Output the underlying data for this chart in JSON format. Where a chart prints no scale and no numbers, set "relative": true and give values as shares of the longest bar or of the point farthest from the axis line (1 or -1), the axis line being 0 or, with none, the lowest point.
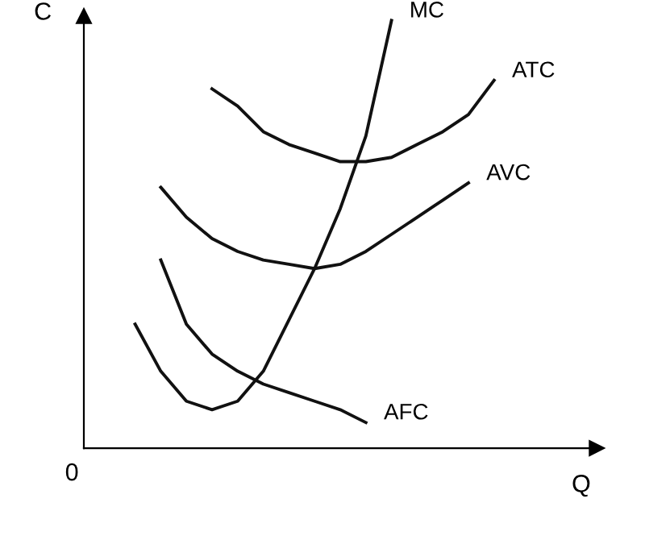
{
  "chart_data": {
    "type": "line",
    "relative": true,
    "xlabel": "Q",
    "ylabel": "C",
    "annotations": [
      "0"
    ],
    "marker": "none",
    "line_style": "solid",
    "categories": [
      null,
      null,
      null,
      null,
      null,
      null,
      null,
      null,
      null,
      null,
      null,
      null,
      null,
      null,
      null
    ],
    "series": [
      {
        "name": "MC",
        "color": "#111111",
        "values": [
          0.29,
          0.18,
          0.11,
          0.09,
          0.11,
          0.18,
          0.3,
          0.42,
          0.56,
          0.73,
          1.0,
          null,
          null,
          null,
          null
        ]
      },
      {
        "name": "ATC",
        "color": "#111111",
        "values": [
          null,
          null,
          null,
          0.84,
          0.8,
          0.74,
          0.71,
          0.69,
          0.67,
          0.67,
          0.68,
          0.71,
          0.74,
          0.78,
          0.86
        ]
      },
      {
        "name": "AVC",
        "color": "#111111",
        "values": [
          null,
          0.61,
          0.54,
          0.49,
          0.46,
          0.44,
          0.43,
          0.42,
          0.43,
          0.46,
          0.5,
          0.54,
          0.58,
          0.62,
          null
        ]
      },
      {
        "name": "AFC",
        "color": "#111111",
        "values": [
          null,
          0.44,
          0.29,
          0.22,
          0.18,
          0.15,
          0.13,
          0.11,
          0.09,
          0.06,
          null,
          null,
          null,
          null,
          null
        ]
      }
    ]
  }
}
